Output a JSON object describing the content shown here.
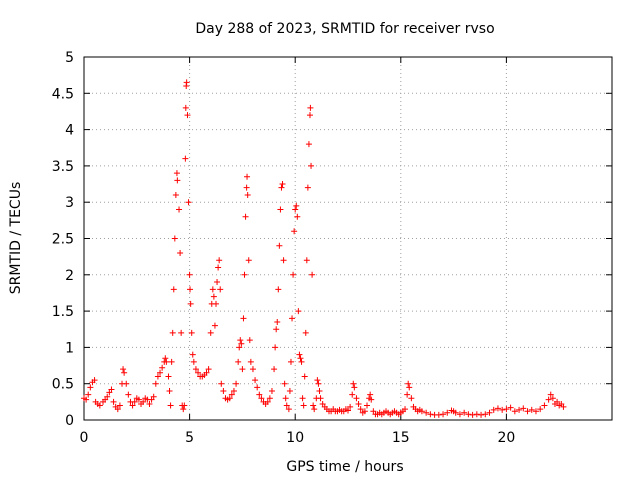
{
  "chart_data": {
    "type": "scatter",
    "title": "Day 288 of 2023, SRMTID for receiver rvso",
    "xlabel": "GPS time / hours",
    "ylabel": "SRMTID / TECUs",
    "xlim": [
      0,
      25
    ],
    "ylim": [
      0,
      5
    ],
    "xticks": [
      0,
      5,
      10,
      15,
      20
    ],
    "xtick_labels": [
      "0",
      "5",
      "10",
      "15",
      "20"
    ],
    "yticks": [
      0,
      0.5,
      1,
      1.5,
      2,
      2.5,
      3,
      3.5,
      4,
      4.5,
      5
    ],
    "ytick_labels": [
      "0",
      "0.5",
      "1",
      "1.5",
      "2",
      "2.5",
      "3",
      "3.5",
      "4",
      "4.5",
      "5"
    ],
    "grid": true,
    "marker": "+",
    "series": [
      {
        "name": "rvso",
        "color": "#ff0000",
        "points": [
          [
            0.0,
            0.3
          ],
          [
            0.1,
            0.28
          ],
          [
            0.2,
            0.35
          ],
          [
            0.3,
            0.45
          ],
          [
            0.4,
            0.52
          ],
          [
            0.5,
            0.55
          ],
          [
            0.55,
            0.25
          ],
          [
            0.65,
            0.22
          ],
          [
            0.75,
            0.2
          ],
          [
            0.9,
            0.25
          ],
          [
            1.0,
            0.28
          ],
          [
            1.1,
            0.32
          ],
          [
            1.2,
            0.38
          ],
          [
            1.3,
            0.42
          ],
          [
            1.4,
            0.25
          ],
          [
            1.5,
            0.18
          ],
          [
            1.6,
            0.15
          ],
          [
            1.7,
            0.2
          ],
          [
            1.8,
            0.5
          ],
          [
            1.85,
            0.7
          ],
          [
            1.9,
            0.65
          ],
          [
            2.0,
            0.5
          ],
          [
            2.1,
            0.35
          ],
          [
            2.2,
            0.25
          ],
          [
            2.3,
            0.2
          ],
          [
            2.4,
            0.25
          ],
          [
            2.5,
            0.3
          ],
          [
            2.6,
            0.28
          ],
          [
            2.7,
            0.22
          ],
          [
            2.8,
            0.25
          ],
          [
            2.9,
            0.3
          ],
          [
            3.0,
            0.28
          ],
          [
            3.1,
            0.22
          ],
          [
            3.2,
            0.28
          ],
          [
            3.3,
            0.32
          ],
          [
            3.4,
            0.5
          ],
          [
            3.5,
            0.6
          ],
          [
            3.6,
            0.65
          ],
          [
            3.7,
            0.72
          ],
          [
            3.8,
            0.8
          ],
          [
            3.85,
            0.85
          ],
          [
            3.9,
            0.8
          ],
          [
            4.0,
            0.6
          ],
          [
            4.05,
            0.4
          ],
          [
            4.1,
            0.2
          ],
          [
            4.15,
            0.8
          ],
          [
            4.2,
            1.2
          ],
          [
            4.25,
            1.8
          ],
          [
            4.3,
            2.5
          ],
          [
            4.35,
            3.1
          ],
          [
            4.4,
            3.4
          ],
          [
            4.42,
            3.3
          ],
          [
            4.5,
            2.9
          ],
          [
            4.55,
            2.3
          ],
          [
            4.6,
            1.2
          ],
          [
            4.65,
            0.2
          ],
          [
            4.7,
            0.15
          ],
          [
            4.75,
            0.2
          ],
          [
            4.8,
            3.6
          ],
          [
            4.82,
            4.3
          ],
          [
            4.84,
            4.6
          ],
          [
            4.86,
            4.65
          ],
          [
            4.9,
            4.2
          ],
          [
            4.95,
            3.0
          ],
          [
            5.0,
            2.0
          ],
          [
            5.02,
            1.8
          ],
          [
            5.05,
            1.6
          ],
          [
            5.1,
            1.2
          ],
          [
            5.15,
            0.9
          ],
          [
            5.2,
            0.8
          ],
          [
            5.3,
            0.7
          ],
          [
            5.4,
            0.65
          ],
          [
            5.5,
            0.6
          ],
          [
            5.6,
            0.6
          ],
          [
            5.7,
            0.62
          ],
          [
            5.8,
            0.65
          ],
          [
            5.9,
            0.7
          ],
          [
            6.0,
            1.2
          ],
          [
            6.05,
            1.6
          ],
          [
            6.1,
            1.8
          ],
          [
            6.15,
            1.7
          ],
          [
            6.2,
            1.3
          ],
          [
            6.25,
            1.6
          ],
          [
            6.3,
            1.9
          ],
          [
            6.35,
            2.1
          ],
          [
            6.4,
            2.2
          ],
          [
            6.45,
            1.8
          ],
          [
            6.5,
            0.5
          ],
          [
            6.6,
            0.4
          ],
          [
            6.7,
            0.3
          ],
          [
            6.8,
            0.28
          ],
          [
            6.9,
            0.3
          ],
          [
            7.0,
            0.35
          ],
          [
            7.1,
            0.4
          ],
          [
            7.2,
            0.5
          ],
          [
            7.3,
            0.8
          ],
          [
            7.35,
            1.0
          ],
          [
            7.4,
            1.1
          ],
          [
            7.45,
            1.05
          ],
          [
            7.5,
            0.7
          ],
          [
            7.55,
            1.4
          ],
          [
            7.6,
            2.0
          ],
          [
            7.65,
            2.8
          ],
          [
            7.7,
            3.2
          ],
          [
            7.72,
            3.35
          ],
          [
            7.75,
            3.1
          ],
          [
            7.8,
            2.2
          ],
          [
            7.85,
            1.1
          ],
          [
            7.9,
            0.8
          ],
          [
            8.0,
            0.7
          ],
          [
            8.1,
            0.55
          ],
          [
            8.2,
            0.45
          ],
          [
            8.3,
            0.35
          ],
          [
            8.4,
            0.3
          ],
          [
            8.5,
            0.25
          ],
          [
            8.6,
            0.22
          ],
          [
            8.7,
            0.25
          ],
          [
            8.8,
            0.3
          ],
          [
            8.9,
            0.4
          ],
          [
            9.0,
            0.7
          ],
          [
            9.05,
            1.0
          ],
          [
            9.1,
            1.25
          ],
          [
            9.15,
            1.35
          ],
          [
            9.2,
            1.8
          ],
          [
            9.25,
            2.4
          ],
          [
            9.3,
            2.9
          ],
          [
            9.35,
            3.2
          ],
          [
            9.4,
            3.25
          ],
          [
            9.45,
            2.2
          ],
          [
            9.5,
            0.5
          ],
          [
            9.55,
            0.3
          ],
          [
            9.6,
            0.2
          ],
          [
            9.7,
            0.15
          ],
          [
            9.75,
            0.4
          ],
          [
            9.8,
            0.8
          ],
          [
            9.85,
            1.4
          ],
          [
            9.9,
            2.0
          ],
          [
            9.95,
            2.6
          ],
          [
            10.0,
            2.9
          ],
          [
            10.05,
            2.95
          ],
          [
            10.1,
            2.8
          ],
          [
            10.15,
            1.5
          ],
          [
            10.2,
            0.9
          ],
          [
            10.25,
            0.85
          ],
          [
            10.3,
            0.8
          ],
          [
            10.35,
            0.3
          ],
          [
            10.4,
            0.2
          ],
          [
            10.45,
            0.6
          ],
          [
            10.5,
            1.2
          ],
          [
            10.55,
            2.2
          ],
          [
            10.6,
            3.2
          ],
          [
            10.65,
            3.8
          ],
          [
            10.7,
            4.2
          ],
          [
            10.72,
            4.3
          ],
          [
            10.75,
            3.5
          ],
          [
            10.8,
            2.0
          ],
          [
            10.85,
            0.2
          ],
          [
            10.9,
            0.15
          ],
          [
            11.0,
            0.3
          ],
          [
            11.05,
            0.55
          ],
          [
            11.1,
            0.5
          ],
          [
            11.15,
            0.4
          ],
          [
            11.2,
            0.3
          ],
          [
            11.3,
            0.22
          ],
          [
            11.4,
            0.18
          ],
          [
            11.5,
            0.15
          ],
          [
            11.6,
            0.12
          ],
          [
            11.7,
            0.12
          ],
          [
            11.8,
            0.15
          ],
          [
            11.9,
            0.12
          ],
          [
            12.0,
            0.12
          ],
          [
            12.1,
            0.14
          ],
          [
            12.2,
            0.12
          ],
          [
            12.3,
            0.12
          ],
          [
            12.4,
            0.15
          ],
          [
            12.5,
            0.13
          ],
          [
            12.6,
            0.18
          ],
          [
            12.7,
            0.35
          ],
          [
            12.75,
            0.5
          ],
          [
            12.8,
            0.45
          ],
          [
            12.9,
            0.3
          ],
          [
            13.0,
            0.22
          ],
          [
            13.1,
            0.15
          ],
          [
            13.2,
            0.1
          ],
          [
            13.3,
            0.12
          ],
          [
            13.4,
            0.2
          ],
          [
            13.5,
            0.3
          ],
          [
            13.55,
            0.35
          ],
          [
            13.6,
            0.28
          ],
          [
            13.7,
            0.12
          ],
          [
            13.8,
            0.08
          ],
          [
            13.9,
            0.08
          ],
          [
            14.0,
            0.1
          ],
          [
            14.1,
            0.08
          ],
          [
            14.2,
            0.1
          ],
          [
            14.3,
            0.12
          ],
          [
            14.4,
            0.1
          ],
          [
            14.5,
            0.08
          ],
          [
            14.6,
            0.1
          ],
          [
            14.7,
            0.12
          ],
          [
            14.8,
            0.1
          ],
          [
            14.9,
            0.08
          ],
          [
            15.0,
            0.1
          ],
          [
            15.1,
            0.12
          ],
          [
            15.2,
            0.15
          ],
          [
            15.3,
            0.35
          ],
          [
            15.35,
            0.5
          ],
          [
            15.4,
            0.45
          ],
          [
            15.5,
            0.3
          ],
          [
            15.6,
            0.18
          ],
          [
            15.7,
            0.15
          ],
          [
            15.8,
            0.12
          ],
          [
            15.9,
            0.14
          ],
          [
            16.0,
            0.12
          ],
          [
            16.2,
            0.1
          ],
          [
            16.4,
            0.08
          ],
          [
            16.6,
            0.07
          ],
          [
            16.8,
            0.07
          ],
          [
            17.0,
            0.08
          ],
          [
            17.2,
            0.1
          ],
          [
            17.4,
            0.13
          ],
          [
            17.5,
            0.12
          ],
          [
            17.6,
            0.1
          ],
          [
            17.8,
            0.08
          ],
          [
            18.0,
            0.1
          ],
          [
            18.2,
            0.08
          ],
          [
            18.4,
            0.07
          ],
          [
            18.6,
            0.08
          ],
          [
            18.8,
            0.07
          ],
          [
            19.0,
            0.08
          ],
          [
            19.2,
            0.1
          ],
          [
            19.4,
            0.14
          ],
          [
            19.6,
            0.16
          ],
          [
            19.8,
            0.14
          ],
          [
            20.0,
            0.15
          ],
          [
            20.2,
            0.17
          ],
          [
            20.4,
            0.12
          ],
          [
            20.6,
            0.14
          ],
          [
            20.8,
            0.16
          ],
          [
            21.0,
            0.12
          ],
          [
            21.2,
            0.14
          ],
          [
            21.4,
            0.12
          ],
          [
            21.6,
            0.15
          ],
          [
            21.8,
            0.2
          ],
          [
            22.0,
            0.28
          ],
          [
            22.1,
            0.35
          ],
          [
            22.2,
            0.3
          ],
          [
            22.3,
            0.22
          ],
          [
            22.4,
            0.25
          ],
          [
            22.5,
            0.2
          ],
          [
            22.6,
            0.22
          ],
          [
            22.7,
            0.18
          ]
        ]
      }
    ]
  }
}
